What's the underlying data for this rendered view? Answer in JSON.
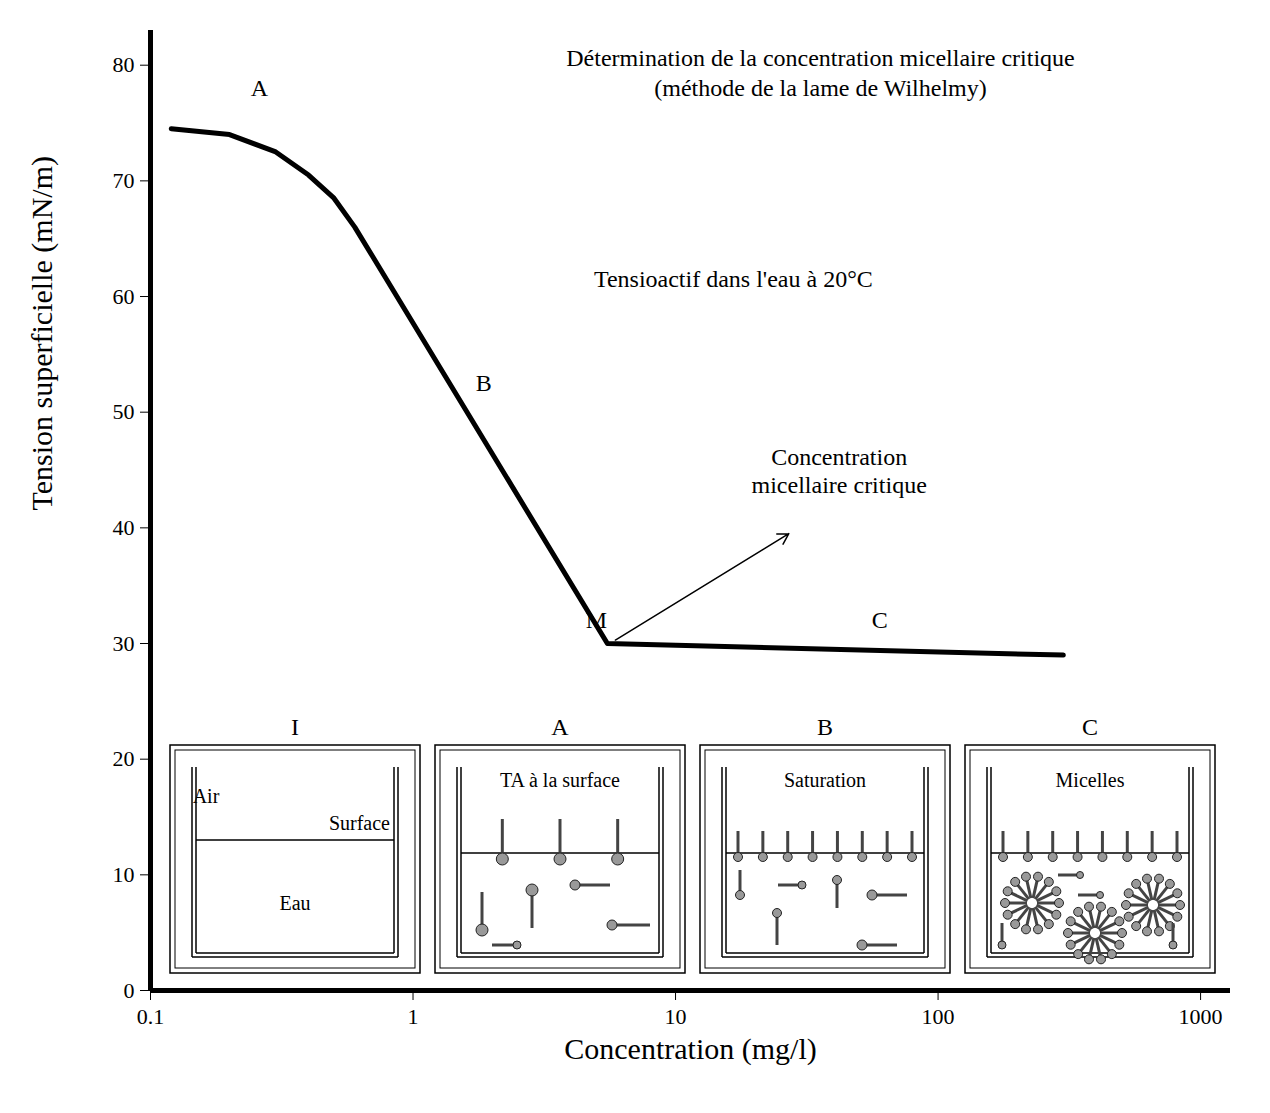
{
  "chart_data": {
    "type": "line",
    "title": "Détermination de la concentration micellaire critique",
    "subtitle": "(méthode de la lame de Wilhelmy)",
    "x_label": "Concentration (mg/l)",
    "y_label": "Tension superficielle (mN/m)",
    "log": "x",
    "x": [
      0.12,
      0.2,
      0.3,
      0.4,
      0.5,
      0.6,
      0.7,
      5.5,
      300
    ],
    "values": [
      74.5,
      74,
      72.5,
      70.5,
      68.5,
      66,
      63.5,
      30,
      29
    ],
    "color": "#000000",
    "xlim": [
      0.1,
      1300
    ],
    "ylim": [
      0,
      83
    ],
    "xticks": [
      0.1,
      1,
      10,
      100,
      1000
    ],
    "yticks": [
      0,
      10,
      20,
      30,
      40,
      50,
      60,
      70,
      80
    ],
    "annotations": [
      {
        "text": "Tensioactif dans l'eau à 20°C",
        "x": 16.6,
        "y": 61.5
      },
      {
        "text": "A",
        "x": 0.26,
        "y": 78
      },
      {
        "text": "B",
        "x": 1.86,
        "y": 52.5
      },
      {
        "text": "M",
        "x": 5.0,
        "y": 32
      },
      {
        "text": "C",
        "x": 60,
        "y": 32
      },
      {
        "text": "Concentration\nmicellaire critique",
        "x": 42,
        "y": 45,
        "arrow_from": [
          5.9,
          30.3
        ],
        "arrow_to": [
          27,
          39.5
        ]
      }
    ],
    "diagrams": [
      {
        "label": "I",
        "texts": [
          "Air",
          "Surface",
          "Eau"
        ]
      },
      {
        "label": "A",
        "texts": [
          "TA à la surface"
        ]
      },
      {
        "label": "B",
        "texts": [
          "Saturation"
        ]
      },
      {
        "label": "C",
        "texts": [
          "Micelles"
        ]
      }
    ]
  }
}
